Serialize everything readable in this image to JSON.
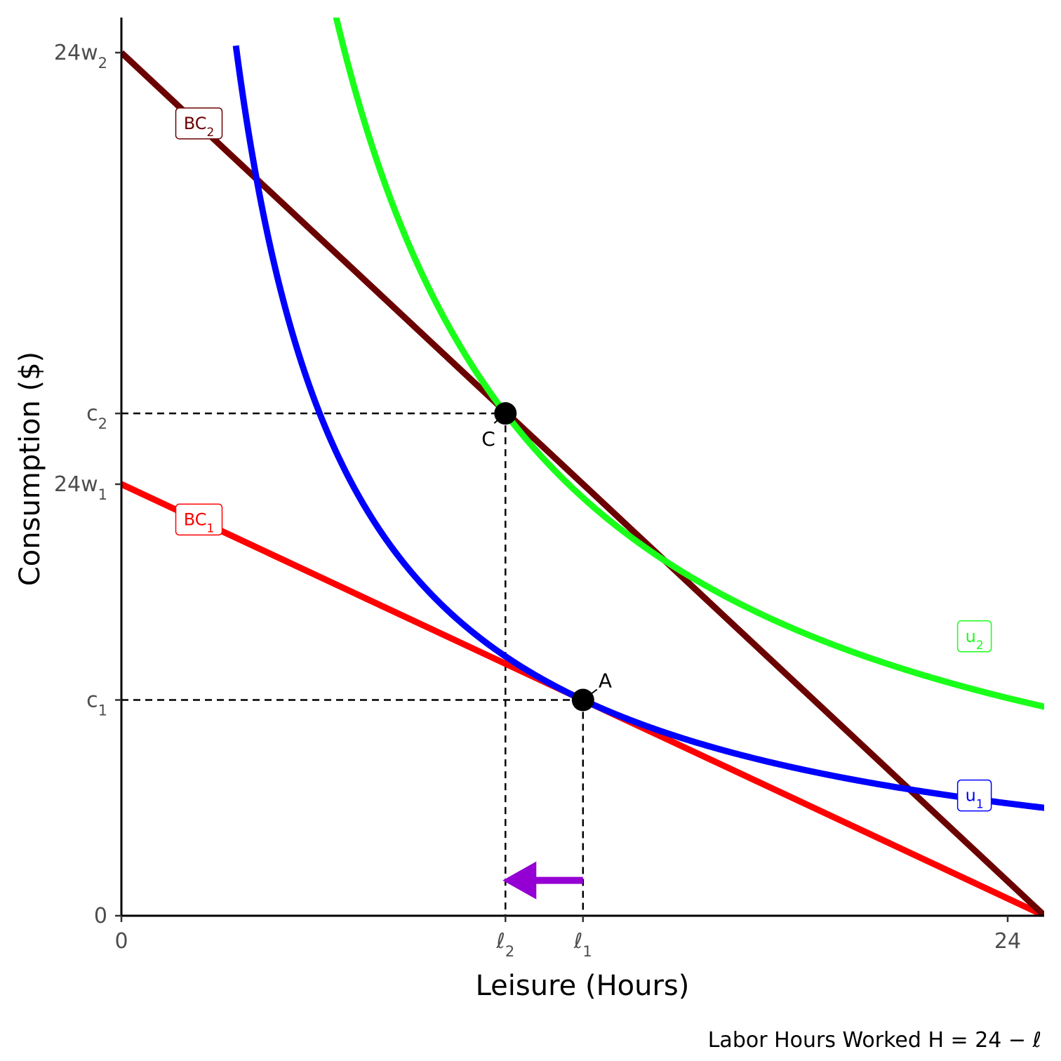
{
  "chart_data": {
    "type": "line",
    "title": "",
    "xlabel": "Leisure (Hours)",
    "ylabel": "Consumption ($)",
    "caption": "Labor Hours Worked H = 24 − ℓ",
    "xlim": [
      0,
      25
    ],
    "ylim": [
      0,
      25.6
    ],
    "grid": false,
    "x_ticks": [
      {
        "value": 0,
        "base": "0",
        "sub": ""
      },
      {
        "value": 10.4,
        "base": "ℓ",
        "sub": "2"
      },
      {
        "value": 12.5,
        "base": "ℓ",
        "sub": "1"
      },
      {
        "value": 24,
        "base": "24",
        "sub": ""
      }
    ],
    "y_ticks": [
      {
        "value": 0,
        "base": "0",
        "sub": ""
      },
      {
        "value": 6.1,
        "base": "c",
        "sub": "1"
      },
      {
        "value": 12.2,
        "base": "24w",
        "sub": "1"
      },
      {
        "value": 14.2,
        "base": "c",
        "sub": "2"
      },
      {
        "value": 24.4,
        "base": "24w",
        "sub": "2"
      }
    ],
    "series": [
      {
        "name": "BC1",
        "kind": "line",
        "color": "#ff0000",
        "points": [
          [
            0,
            12.2
          ],
          [
            25,
            0
          ]
        ],
        "label": {
          "base": "BC",
          "sub": "1",
          "at": [
            2.1,
            11.2
          ]
        }
      },
      {
        "name": "BC2",
        "kind": "line",
        "color": "#6b0000",
        "points": [
          [
            0,
            24.4
          ],
          [
            25,
            0
          ]
        ],
        "label": {
          "base": "BC",
          "sub": "2",
          "at": [
            2.1,
            22.4
          ]
        }
      },
      {
        "name": "u1",
        "kind": "indifference",
        "color": "#0000ff",
        "k": 76.25,
        "x_range": [
          3.1,
          26
        ],
        "label": {
          "base": "u",
          "sub": "1",
          "at": [
            23.1,
            3.4
          ]
        }
      },
      {
        "name": "u2",
        "kind": "indifference",
        "color": "#1aff1a",
        "k": 147.7,
        "x_range": [
          4.15,
          26
        ],
        "label": {
          "base": "u",
          "sub": "2",
          "at": [
            23.1,
            7.9
          ]
        }
      }
    ],
    "points": [
      {
        "name": "A",
        "x": 12.5,
        "y": 6.1,
        "label_dir": "up-right"
      },
      {
        "name": "C",
        "x": 10.4,
        "y": 14.2,
        "label_dir": "down-left"
      }
    ],
    "shift_arrow": {
      "from_x": 12.5,
      "to_x": 10.4,
      "y": 1.0,
      "color": "#9400d3"
    }
  }
}
